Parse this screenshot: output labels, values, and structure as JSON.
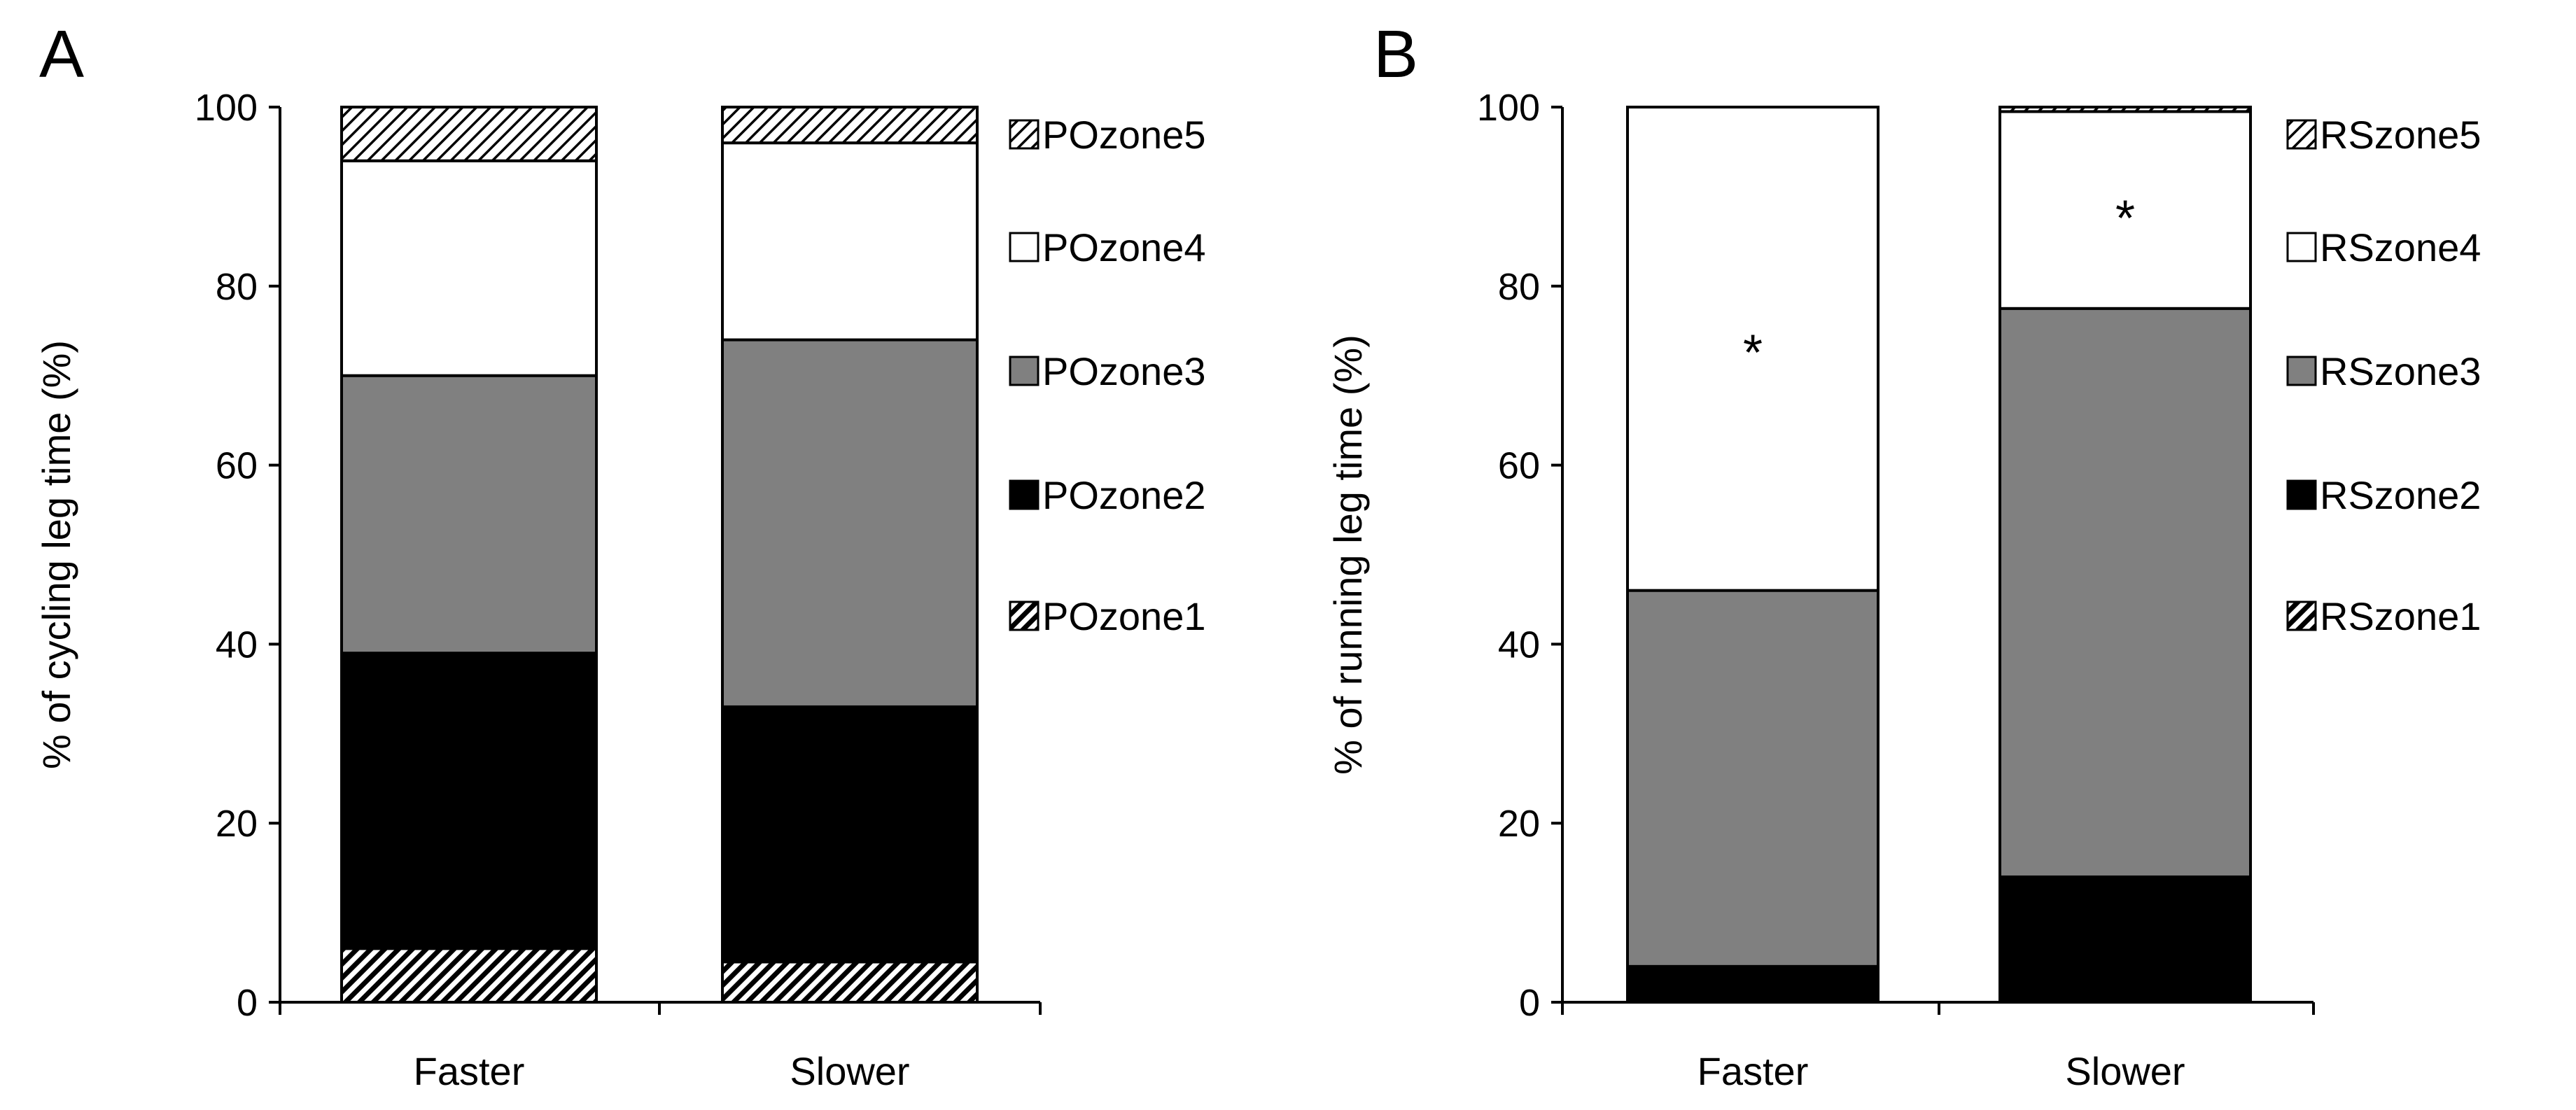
{
  "colors": {
    "zone1": "hatch-dense-black",
    "zone2": "#000000",
    "zone3": "#808080",
    "zone4": "#ffffff",
    "zone5": "hatch-light",
    "stroke": "#000000"
  },
  "chart_data": [
    {
      "type": "bar",
      "stacked": true,
      "panel_label": "A",
      "ylabel": "% of cycling leg time (%)",
      "ylim": [
        0,
        100
      ],
      "yticks": [
        "0",
        "20",
        "40",
        "60",
        "80",
        "100"
      ],
      "categories": [
        "Faster",
        "Slower"
      ],
      "series": [
        {
          "name": "POzone1",
          "pattern": "zone1",
          "values": [
            6,
            4.5
          ]
        },
        {
          "name": "POzone2",
          "pattern": "zone2",
          "values": [
            33,
            28.5
          ]
        },
        {
          "name": "POzone3",
          "pattern": "zone3",
          "values": [
            31,
            41
          ]
        },
        {
          "name": "POzone4",
          "pattern": "zone4",
          "values": [
            24,
            22
          ]
        },
        {
          "name": "POzone5",
          "pattern": "zone5",
          "values": [
            6,
            4
          ]
        }
      ],
      "annotations": []
    },
    {
      "type": "bar",
      "stacked": true,
      "panel_label": "B",
      "ylabel": "% of running leg time (%)",
      "ylim": [
        0,
        100
      ],
      "yticks": [
        "0",
        "20",
        "40",
        "60",
        "80",
        "100"
      ],
      "categories": [
        "Faster",
        "Slower"
      ],
      "series": [
        {
          "name": "RSzone1",
          "pattern": "zone1",
          "values": [
            0,
            0
          ]
        },
        {
          "name": "RSzone2",
          "pattern": "zone2",
          "values": [
            4,
            14
          ]
        },
        {
          "name": "RSzone3",
          "pattern": "zone3",
          "values": [
            42,
            63.5
          ]
        },
        {
          "name": "RSzone4",
          "pattern": "zone4",
          "values": [
            54,
            22
          ]
        },
        {
          "name": "RSzone5",
          "pattern": "zone5",
          "values": [
            0,
            0.5
          ]
        }
      ],
      "annotations": [
        {
          "category": "Faster",
          "series": "RSzone4",
          "text": "*",
          "y": 73
        },
        {
          "category": "Slower",
          "series": "RSzone4",
          "text": "*",
          "y": 88
        }
      ]
    }
  ]
}
